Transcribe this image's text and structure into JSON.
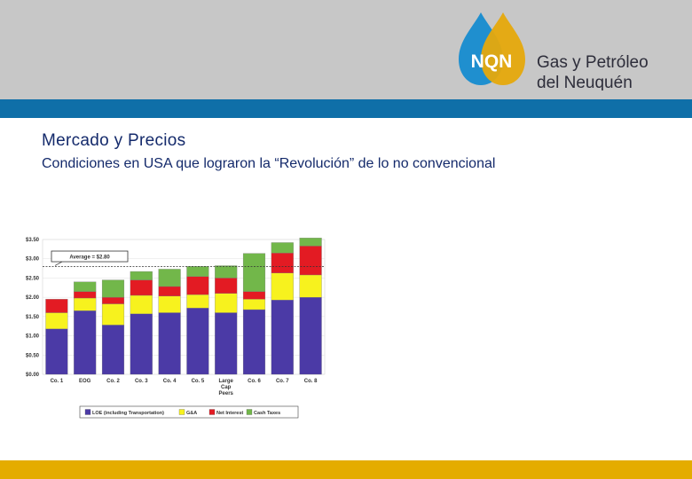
{
  "brand": {
    "logo_text": "NQN",
    "name_line1": "Gas y Petróleo",
    "name_line2": "del Neuquén"
  },
  "section_title": "Mercado y Precios",
  "subtitle": "Condiciones en USA que lograron la “Revolución” de lo no convencional",
  "colors": {
    "header_gray": "#c7c7c7",
    "blue_band": "#0f6fa8",
    "bottom_band": "#e4ac00",
    "drop_blue": "#1f8fcf",
    "drop_gold": "#e6a90c",
    "loe": "#4b3aa6",
    "gsa": "#f7f21e",
    "net_interest": "#e31b23",
    "cash_taxes": "#72b74a"
  },
  "chart_data": {
    "type": "bar",
    "stacked": true,
    "categories": [
      "Co. 1",
      "EOG",
      "Co. 2",
      "Co. 3",
      "Co. 4",
      "Co. 5",
      "Large Cap Peers",
      "Co. 6",
      "Co. 7",
      "Co. 8"
    ],
    "series": [
      {
        "name": "LOE (including Transportation)",
        "values": [
          1.18,
          1.65,
          1.28,
          1.57,
          1.6,
          1.72,
          1.6,
          1.68,
          1.93,
          2.0
        ]
      },
      {
        "name": "G&A",
        "values": [
          0.42,
          0.33,
          0.55,
          0.48,
          0.43,
          0.35,
          0.5,
          0.27,
          0.7,
          0.58
        ]
      },
      {
        "name": "Net Interest",
        "values": [
          0.35,
          0.17,
          0.17,
          0.4,
          0.25,
          0.47,
          0.4,
          0.2,
          0.52,
          0.75
        ]
      },
      {
        "name": "Cash Taxes",
        "values": [
          0.0,
          0.25,
          0.45,
          0.22,
          0.45,
          0.26,
          0.32,
          0.99,
          0.27,
          0.21
        ]
      }
    ],
    "ylim": [
      0,
      3.5
    ],
    "yticks": [
      "$0.00",
      "$0.50",
      "$1.00",
      "$1.50",
      "$2.00",
      "$2.50",
      "$3.00",
      "$3.50"
    ],
    "ytick_values": [
      0,
      0.5,
      1.0,
      1.5,
      2.0,
      2.5,
      3.0,
      3.5
    ],
    "average_value": 2.8,
    "average_label": "Average = $2.80",
    "legend_position": "bottom",
    "legend_labels": [
      "LOE (including Transportation)",
      "G&A",
      "Net Interest",
      "Cash Taxes"
    ]
  }
}
